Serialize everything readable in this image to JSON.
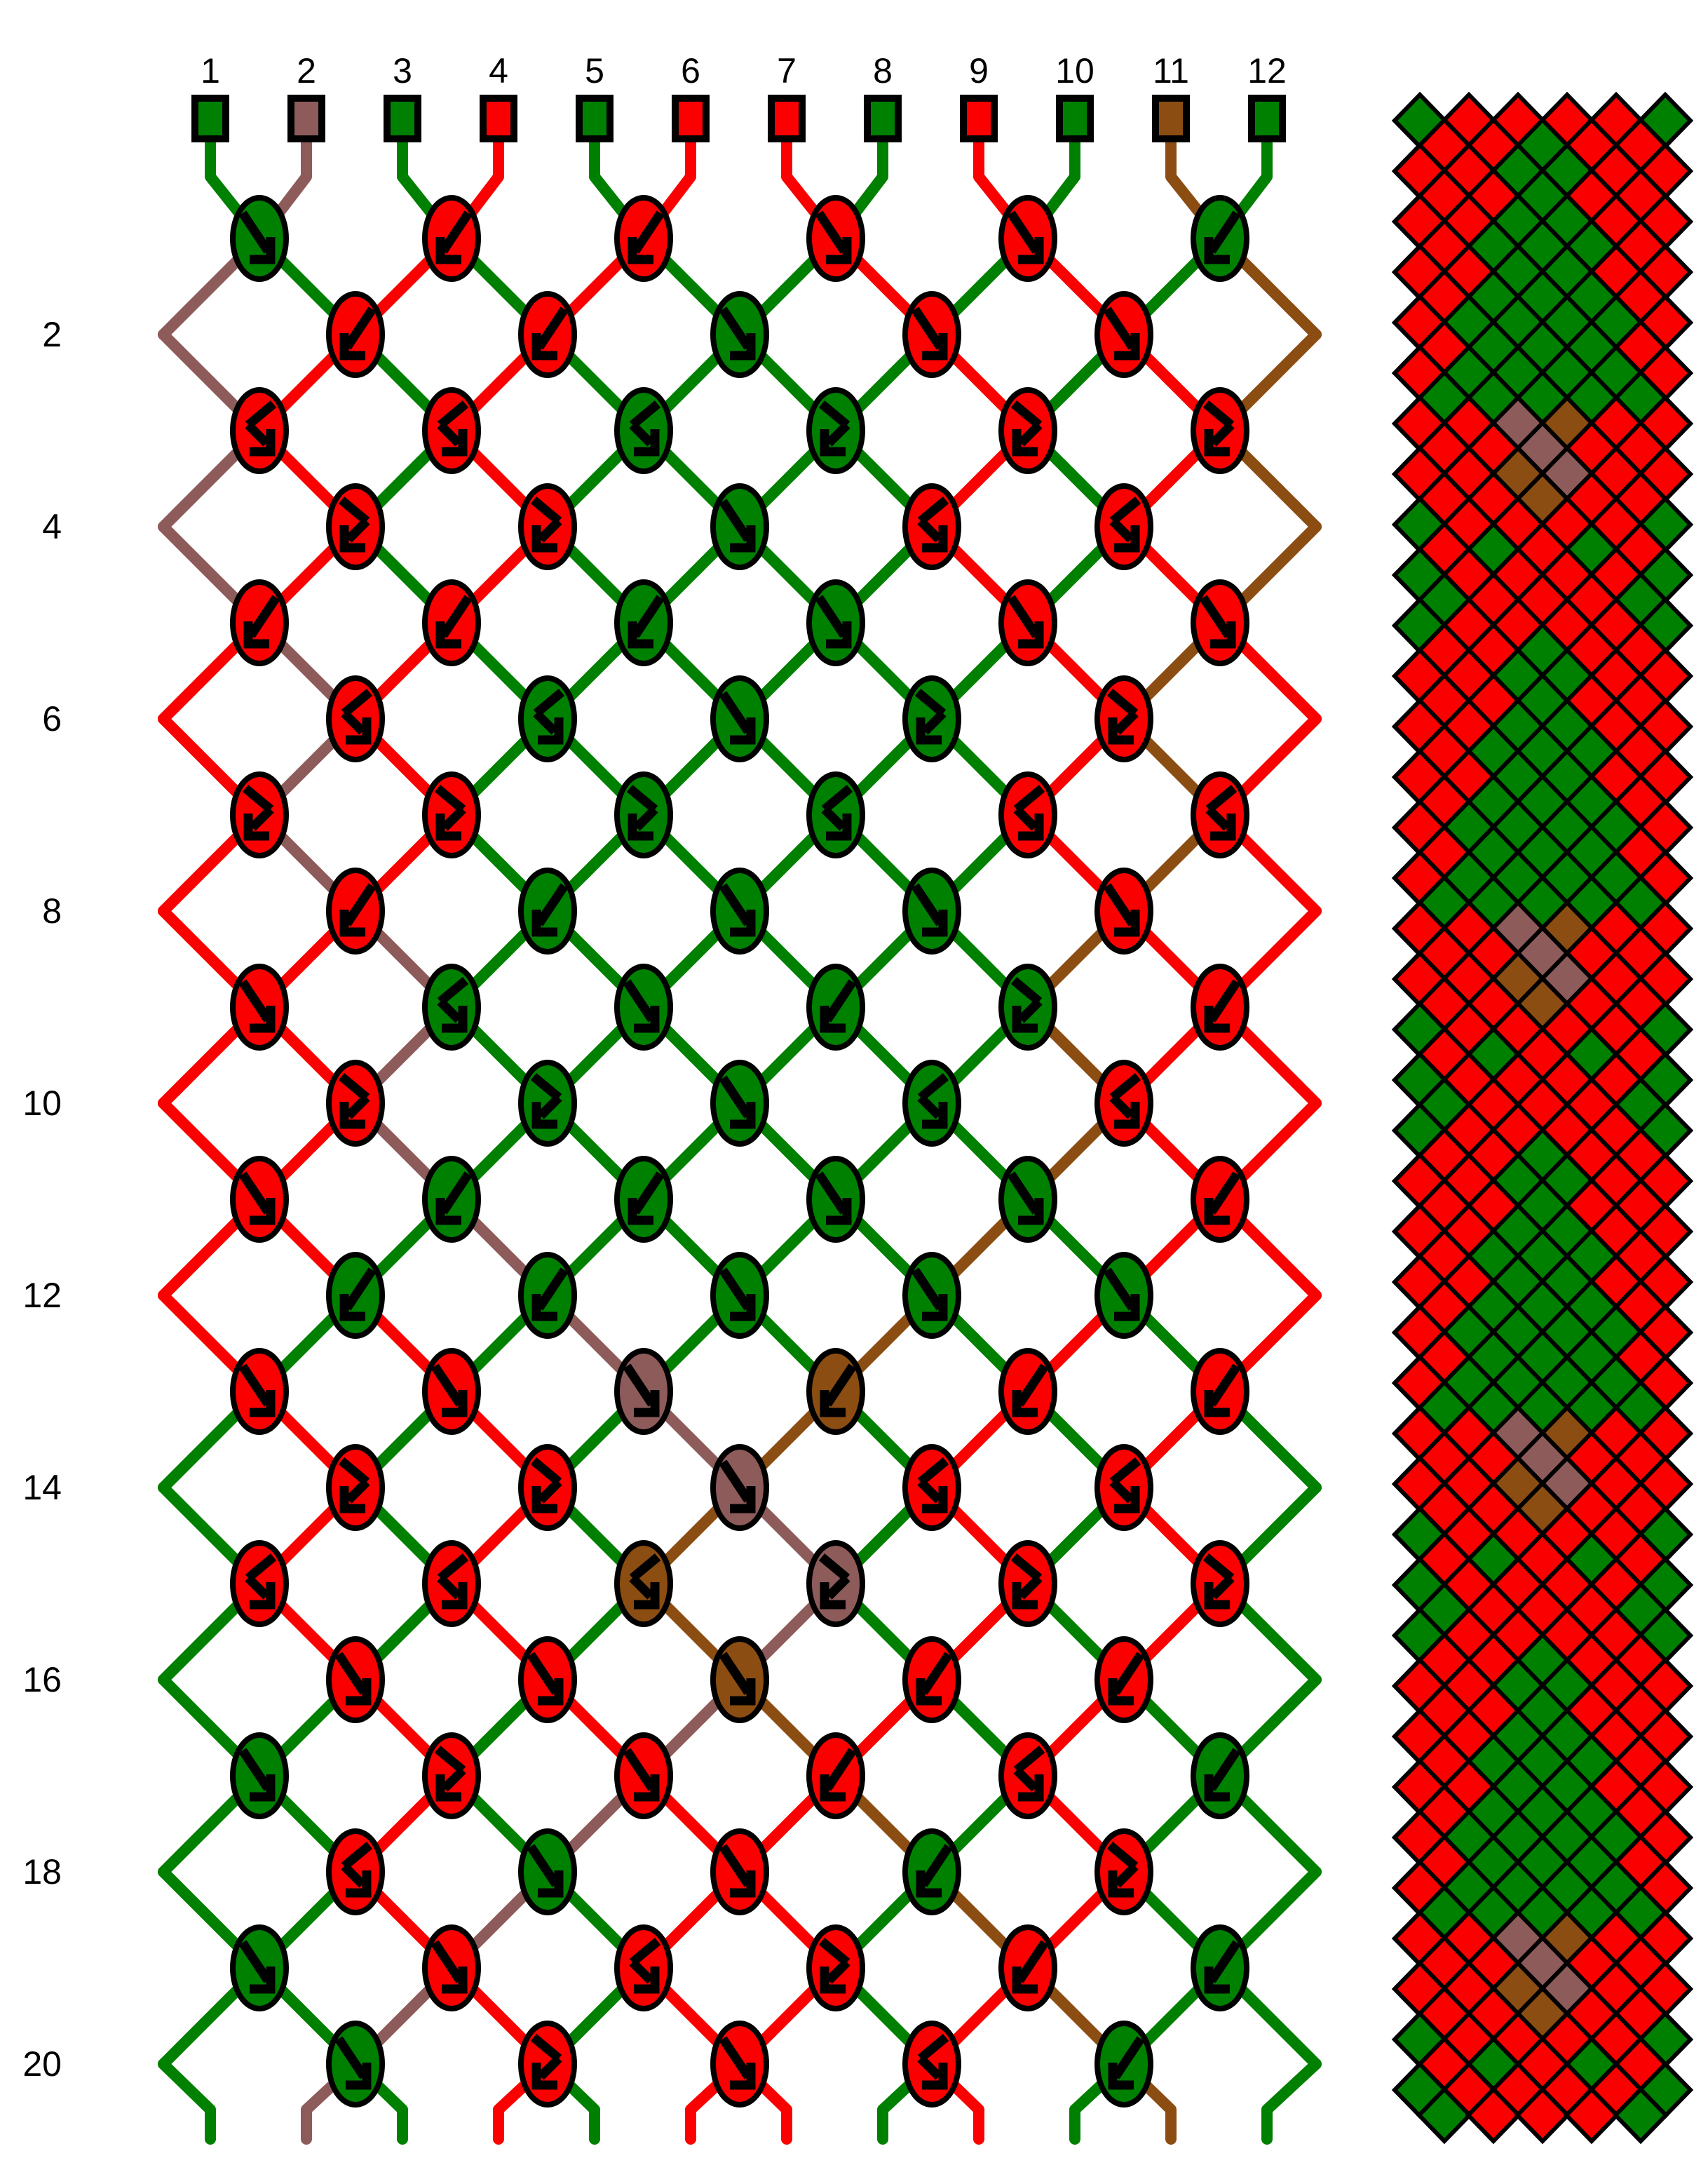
{
  "palette": {
    "G": "#008000",
    "R": "#FA0000",
    "RB": "#8E5B5B",
    "BR": "#8B4D12",
    "outline": "#000000",
    "background": "#FFFFFF"
  },
  "diagram": {
    "strand_labels": [
      "1",
      "2",
      "3",
      "4",
      "5",
      "6",
      "7",
      "8",
      "9",
      "10",
      "11",
      "12"
    ],
    "row_labels": [
      "2",
      "4",
      "6",
      "8",
      "10",
      "12",
      "14",
      "16",
      "18",
      "20"
    ],
    "strands_top": [
      "G",
      "RB",
      "G",
      "R",
      "G",
      "R",
      "R",
      "G",
      "R",
      "G",
      "BR",
      "G"
    ],
    "rows": [
      {
        "row": 1,
        "knots": [
          {
            "c": "G",
            "t": "F"
          },
          {
            "c": "R",
            "t": "B"
          },
          {
            "c": "R",
            "t": "B"
          },
          {
            "c": "R",
            "t": "F"
          },
          {
            "c": "R",
            "t": "F"
          },
          {
            "c": "G",
            "t": "B"
          }
        ]
      },
      {
        "row": 2,
        "knots": [
          {
            "c": "R",
            "t": "B"
          },
          {
            "c": "R",
            "t": "B"
          },
          {
            "c": "G",
            "t": "F"
          },
          {
            "c": "R",
            "t": "F"
          },
          {
            "c": "R",
            "t": "F"
          }
        ]
      },
      {
        "row": 3,
        "knots": [
          {
            "c": "R",
            "t": "BF"
          },
          {
            "c": "R",
            "t": "BF"
          },
          {
            "c": "G",
            "t": "BF"
          },
          {
            "c": "G",
            "t": "FB"
          },
          {
            "c": "R",
            "t": "FB"
          },
          {
            "c": "R",
            "t": "FB"
          }
        ]
      },
      {
        "row": 4,
        "knots": [
          {
            "c": "R",
            "t": "FB"
          },
          {
            "c": "R",
            "t": "FB"
          },
          {
            "c": "G",
            "t": "F"
          },
          {
            "c": "R",
            "t": "BF"
          },
          {
            "c": "R",
            "t": "BF"
          }
        ]
      },
      {
        "row": 5,
        "knots": [
          {
            "c": "R",
            "t": "B"
          },
          {
            "c": "R",
            "t": "B"
          },
          {
            "c": "G",
            "t": "B"
          },
          {
            "c": "G",
            "t": "F"
          },
          {
            "c": "R",
            "t": "F"
          },
          {
            "c": "R",
            "t": "F"
          }
        ]
      },
      {
        "row": 6,
        "knots": [
          {
            "c": "R",
            "t": "BF"
          },
          {
            "c": "G",
            "t": "BF"
          },
          {
            "c": "G",
            "t": "F"
          },
          {
            "c": "G",
            "t": "FB"
          },
          {
            "c": "R",
            "t": "FB"
          }
        ]
      },
      {
        "row": 7,
        "knots": [
          {
            "c": "R",
            "t": "FB"
          },
          {
            "c": "R",
            "t": "FB"
          },
          {
            "c": "G",
            "t": "FB"
          },
          {
            "c": "G",
            "t": "BF"
          },
          {
            "c": "R",
            "t": "BF"
          },
          {
            "c": "R",
            "t": "BF"
          }
        ]
      },
      {
        "row": 8,
        "knots": [
          {
            "c": "R",
            "t": "B"
          },
          {
            "c": "G",
            "t": "B"
          },
          {
            "c": "G",
            "t": "F"
          },
          {
            "c": "G",
            "t": "F"
          },
          {
            "c": "R",
            "t": "F"
          }
        ]
      },
      {
        "row": 9,
        "knots": [
          {
            "c": "R",
            "t": "F"
          },
          {
            "c": "G",
            "t": "BF"
          },
          {
            "c": "G",
            "t": "F"
          },
          {
            "c": "G",
            "t": "B"
          },
          {
            "c": "G",
            "t": "FB"
          },
          {
            "c": "R",
            "t": "B"
          }
        ]
      },
      {
        "row": 10,
        "knots": [
          {
            "c": "R",
            "t": "FB"
          },
          {
            "c": "G",
            "t": "FB"
          },
          {
            "c": "G",
            "t": "F"
          },
          {
            "c": "G",
            "t": "BF"
          },
          {
            "c": "R",
            "t": "BF"
          }
        ]
      },
      {
        "row": 11,
        "knots": [
          {
            "c": "R",
            "t": "F"
          },
          {
            "c": "G",
            "t": "B"
          },
          {
            "c": "G",
            "t": "B"
          },
          {
            "c": "G",
            "t": "F"
          },
          {
            "c": "G",
            "t": "F"
          },
          {
            "c": "R",
            "t": "B"
          }
        ]
      },
      {
        "row": 12,
        "knots": [
          {
            "c": "G",
            "t": "B"
          },
          {
            "c": "G",
            "t": "B"
          },
          {
            "c": "G",
            "t": "F"
          },
          {
            "c": "G",
            "t": "F"
          },
          {
            "c": "G",
            "t": "F"
          }
        ]
      },
      {
        "row": 13,
        "knots": [
          {
            "c": "R",
            "t": "F"
          },
          {
            "c": "R",
            "t": "F"
          },
          {
            "c": "RB",
            "t": "F"
          },
          {
            "c": "BR",
            "t": "B"
          },
          {
            "c": "R",
            "t": "B"
          },
          {
            "c": "R",
            "t": "B"
          }
        ]
      },
      {
        "row": 14,
        "knots": [
          {
            "c": "R",
            "t": "FB"
          },
          {
            "c": "R",
            "t": "FB"
          },
          {
            "c": "RB",
            "t": "F"
          },
          {
            "c": "R",
            "t": "BF"
          },
          {
            "c": "R",
            "t": "BF"
          }
        ]
      },
      {
        "row": 15,
        "knots": [
          {
            "c": "R",
            "t": "BF"
          },
          {
            "c": "R",
            "t": "BF"
          },
          {
            "c": "BR",
            "t": "BF"
          },
          {
            "c": "RB",
            "t": "FB"
          },
          {
            "c": "R",
            "t": "FB"
          },
          {
            "c": "R",
            "t": "FB"
          }
        ]
      },
      {
        "row": 16,
        "knots": [
          {
            "c": "R",
            "t": "F"
          },
          {
            "c": "R",
            "t": "F"
          },
          {
            "c": "BR",
            "t": "F"
          },
          {
            "c": "R",
            "t": "B"
          },
          {
            "c": "R",
            "t": "B"
          }
        ]
      },
      {
        "row": 17,
        "knots": [
          {
            "c": "G",
            "t": "F"
          },
          {
            "c": "R",
            "t": "FB"
          },
          {
            "c": "R",
            "t": "F"
          },
          {
            "c": "R",
            "t": "B"
          },
          {
            "c": "R",
            "t": "BF"
          },
          {
            "c": "G",
            "t": "B"
          }
        ]
      },
      {
        "row": 18,
        "knots": [
          {
            "c": "R",
            "t": "BF"
          },
          {
            "c": "G",
            "t": "F"
          },
          {
            "c": "R",
            "t": "F"
          },
          {
            "c": "G",
            "t": "B"
          },
          {
            "c": "R",
            "t": "FB"
          }
        ]
      },
      {
        "row": 19,
        "knots": [
          {
            "c": "G",
            "t": "F"
          },
          {
            "c": "R",
            "t": "F"
          },
          {
            "c": "R",
            "t": "BF"
          },
          {
            "c": "R",
            "t": "FB"
          },
          {
            "c": "R",
            "t": "B"
          },
          {
            "c": "G",
            "t": "B"
          }
        ]
      },
      {
        "row": 20,
        "knots": [
          {
            "c": "G",
            "t": "F"
          },
          {
            "c": "R",
            "t": "FB"
          },
          {
            "c": "R",
            "t": "F"
          },
          {
            "c": "R",
            "t": "BF"
          },
          {
            "c": "G",
            "t": "B"
          }
        ]
      }
    ],
    "gaps": [
      [
        "G",
        "RB",
        "G",
        "R",
        "G",
        "R",
        "R",
        "G",
        "R",
        "G",
        "BR",
        "G"
      ],
      [
        "RB",
        "G",
        "R",
        "G",
        "R",
        "G",
        "G",
        "R",
        "G",
        "R",
        "G",
        "BR"
      ],
      [
        "RB",
        "R",
        "G",
        "R",
        "G",
        "G",
        "G",
        "G",
        "R",
        "G",
        "R",
        "BR"
      ],
      [
        "RB",
        "R",
        "G",
        "R",
        "G",
        "G",
        "G",
        "G",
        "R",
        "G",
        "R",
        "BR"
      ],
      [
        "RB",
        "R",
        "G",
        "R",
        "G",
        "G",
        "G",
        "G",
        "R",
        "G",
        "R",
        "BR"
      ],
      [
        "R",
        "RB",
        "R",
        "G",
        "G",
        "G",
        "G",
        "G",
        "G",
        "R",
        "BR",
        "R"
      ],
      [
        "R",
        "RB",
        "R",
        "G",
        "G",
        "G",
        "G",
        "G",
        "G",
        "R",
        "BR",
        "R"
      ],
      [
        "R",
        "RB",
        "R",
        "G",
        "G",
        "G",
        "G",
        "G",
        "G",
        "R",
        "BR",
        "R"
      ],
      [
        "R",
        "R",
        "RB",
        "G",
        "G",
        "G",
        "G",
        "G",
        "G",
        "BR",
        "R",
        "R"
      ],
      [
        "R",
        "R",
        "RB",
        "G",
        "G",
        "G",
        "G",
        "G",
        "G",
        "BR",
        "R",
        "R"
      ],
      [
        "R",
        "R",
        "RB",
        "G",
        "G",
        "G",
        "G",
        "G",
        "G",
        "BR",
        "R",
        "R"
      ],
      [
        "R",
        "R",
        "G",
        "RB",
        "G",
        "G",
        "G",
        "G",
        "BR",
        "G",
        "R",
        "R"
      ],
      [
        "R",
        "G",
        "R",
        "G",
        "RB",
        "G",
        "G",
        "BR",
        "G",
        "R",
        "G",
        "R"
      ],
      [
        "G",
        "R",
        "G",
        "R",
        "G",
        "RB",
        "BR",
        "G",
        "R",
        "G",
        "R",
        "G"
      ],
      [
        "G",
        "R",
        "G",
        "R",
        "G",
        "BR",
        "RB",
        "G",
        "R",
        "G",
        "R",
        "G"
      ],
      [
        "G",
        "R",
        "G",
        "R",
        "G",
        "BR",
        "RB",
        "G",
        "R",
        "G",
        "R",
        "G"
      ],
      [
        "G",
        "G",
        "R",
        "G",
        "R",
        "RB",
        "BR",
        "R",
        "G",
        "R",
        "G",
        "G"
      ],
      [
        "G",
        "G",
        "R",
        "G",
        "RB",
        "R",
        "R",
        "BR",
        "G",
        "R",
        "G",
        "G"
      ],
      [
        "G",
        "G",
        "R",
        "RB",
        "G",
        "R",
        "R",
        "G",
        "BR",
        "R",
        "G",
        "G"
      ],
      [
        "G",
        "G",
        "RB",
        "R",
        "G",
        "R",
        "R",
        "G",
        "R",
        "BR",
        "G",
        "G"
      ],
      [
        "G",
        "RB",
        "G",
        "R",
        "G",
        "R",
        "R",
        "G",
        "R",
        "G",
        "BR",
        "G"
      ]
    ]
  },
  "preview": {
    "pattern_repeats": 4,
    "rows_total": 80
  }
}
